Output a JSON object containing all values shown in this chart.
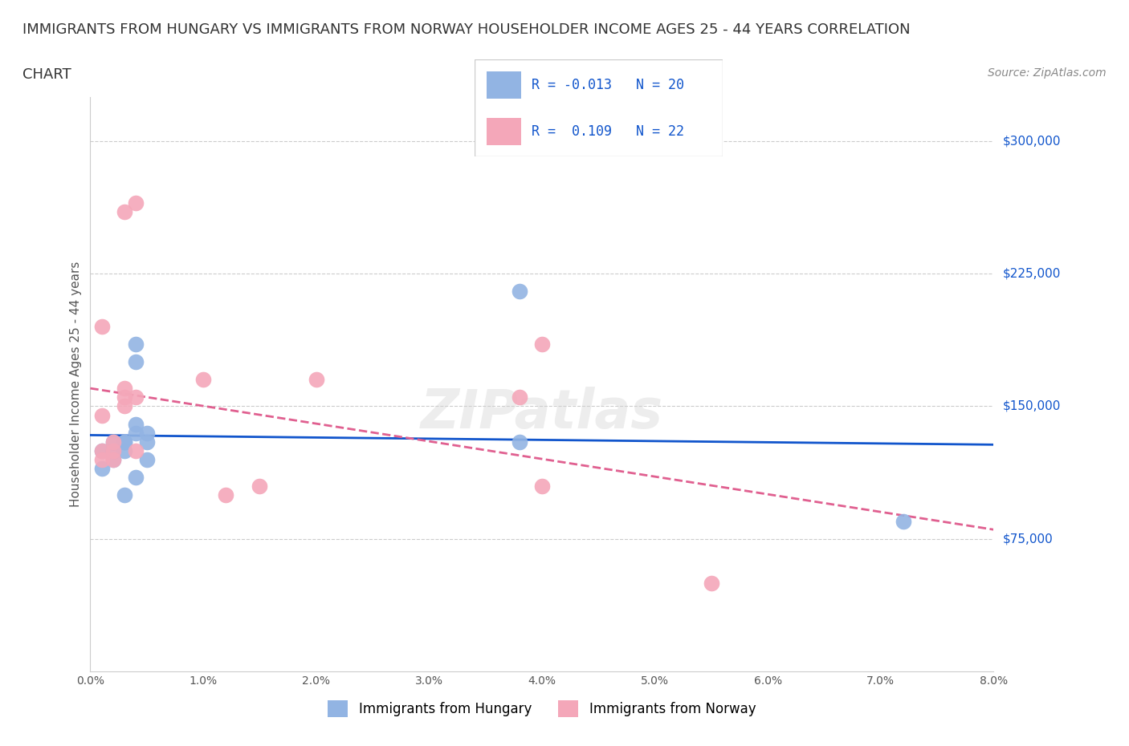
{
  "title_line1": "IMMIGRANTS FROM HUNGARY VS IMMIGRANTS FROM NORWAY HOUSEHOLDER INCOME AGES 25 - 44 YEARS CORRELATION",
  "title_line2": "CHART",
  "source_text": "Source: ZipAtlas.com",
  "xlabel": "",
  "ylabel": "Householder Income Ages 25 - 44 years",
  "x_min": 0.0,
  "x_max": 0.08,
  "y_min": 0,
  "y_max": 325000,
  "hungary_color": "#92b4e3",
  "norway_color": "#f4a7b9",
  "hungary_line_color": "#1155cc",
  "norway_line_color": "#e06090",
  "hungary_R": -0.013,
  "hungary_N": 20,
  "norway_R": 0.109,
  "norway_N": 22,
  "watermark": "ZIPatlas",
  "legend_label_hungary": "Immigrants from Hungary",
  "legend_label_norway": "Immigrants from Norway",
  "hungary_x": [
    0.001,
    0.001,
    0.002,
    0.002,
    0.002,
    0.003,
    0.003,
    0.003,
    0.003,
    0.004,
    0.004,
    0.004,
    0.004,
    0.004,
    0.005,
    0.005,
    0.005,
    0.038,
    0.038,
    0.072
  ],
  "hungary_y": [
    115000,
    125000,
    120000,
    125000,
    130000,
    100000,
    125000,
    130000,
    130000,
    110000,
    135000,
    140000,
    175000,
    185000,
    120000,
    130000,
    135000,
    130000,
    215000,
    85000
  ],
  "norway_x": [
    0.001,
    0.001,
    0.001,
    0.001,
    0.002,
    0.002,
    0.002,
    0.003,
    0.003,
    0.003,
    0.003,
    0.004,
    0.004,
    0.004,
    0.01,
    0.012,
    0.015,
    0.02,
    0.038,
    0.04,
    0.04,
    0.055
  ],
  "norway_y": [
    120000,
    125000,
    145000,
    195000,
    120000,
    125000,
    130000,
    150000,
    155000,
    160000,
    260000,
    265000,
    125000,
    155000,
    165000,
    100000,
    105000,
    165000,
    155000,
    185000,
    105000,
    50000
  ],
  "yticks": [
    75000,
    150000,
    225000,
    300000
  ],
  "ytick_labels": [
    "$75,000",
    "$150,000",
    "$225,000",
    "$300,000"
  ],
  "xticks": [
    0.0,
    0.01,
    0.02,
    0.03,
    0.04,
    0.05,
    0.06,
    0.07,
    0.08
  ],
  "xtick_labels": [
    "0.0%",
    "1.0%",
    "2.0%",
    "3.0%",
    "4.0%",
    "5.0%",
    "6.0%",
    "7.0%",
    "8.0%"
  ],
  "grid_color": "#cccccc",
  "background_color": "#ffffff",
  "title_fontsize": 13,
  "axis_label_fontsize": 11,
  "tick_fontsize": 10,
  "legend_fontsize": 11,
  "source_fontsize": 10
}
